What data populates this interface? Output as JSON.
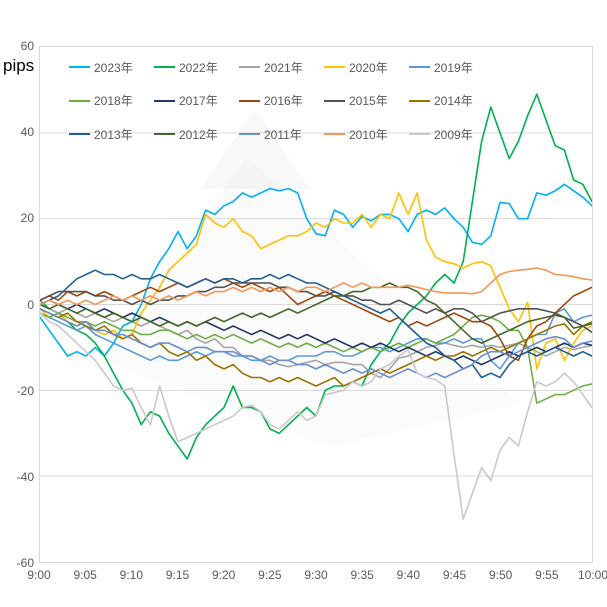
{
  "chart_data": {
    "type": "line",
    "title": "",
    "ylabel": "pips",
    "xlabel": "",
    "ylim": [
      -60,
      60
    ],
    "y_ticks": [
      60,
      40,
      20,
      0,
      -20,
      -40,
      -60
    ],
    "x_tick_labels": [
      "9:00",
      "9:05",
      "9:10",
      "9:15",
      "9:20",
      "9:25",
      "9:30",
      "9:35",
      "9:40",
      "9:45",
      "9:50",
      "9:55",
      "10:00"
    ],
    "x_start": "9:00",
    "x_end": "10:00",
    "x_interval_minutes": 1,
    "points_per_series": 61,
    "grid": true,
    "gridline_color": "#D9D9D9",
    "axis_text_color": "#595959",
    "legend_position": "top-left-inside",
    "legend_rows": 3,
    "legend_cols": 5,
    "series": [
      {
        "name": "2023年",
        "color": "#00B0F0",
        "values": [
          -3,
          -6,
          -9,
          -12,
          -11,
          -12,
          -10,
          -12,
          -9,
          -5,
          -4,
          0,
          6,
          10,
          13,
          17,
          13,
          16,
          22,
          21,
          23,
          24,
          26,
          25,
          26,
          27,
          26.5,
          27,
          26,
          20,
          16.5,
          16,
          22,
          21,
          18,
          20.5,
          19.5,
          21,
          21,
          20,
          17,
          21,
          22,
          21,
          22.5,
          20,
          18,
          14.5,
          14,
          16,
          23.8,
          23.5,
          20,
          20,
          26,
          25.5,
          26.5,
          28,
          26.5,
          25,
          23
        ]
      },
      {
        "name": "2022年",
        "color": "#00B050",
        "values": [
          1,
          -1,
          -2,
          -4,
          -6,
          -7,
          -9,
          -12,
          -16,
          -20,
          -23,
          -28,
          -25,
          -26,
          -30,
          -33,
          -36,
          -31,
          -28,
          -26,
          -24,
          -19,
          -24,
          -24,
          -25,
          -29,
          -30,
          -28,
          -26,
          -24,
          -26,
          -20,
          -19,
          -19,
          -18,
          -19,
          -14,
          -11,
          -9,
          -5,
          -2,
          0,
          2,
          5,
          7,
          5,
          10,
          24,
          38,
          46,
          40,
          34,
          38,
          44,
          49,
          43,
          37,
          36,
          29,
          28,
          24
        ]
      },
      {
        "name": "2021年",
        "color": "#A5A5A5",
        "values": [
          0,
          -1,
          -2,
          -1,
          -2,
          -3,
          -2,
          -3,
          -4,
          -3,
          -4,
          -5,
          -4,
          -5,
          -6,
          -7,
          -6,
          -8,
          -9,
          -8,
          -10,
          -10,
          -12,
          -12,
          -13,
          -13,
          -14,
          -14.5,
          -14,
          -13.5,
          -13,
          -14,
          -13.5,
          -13.5,
          -14,
          -14,
          -16,
          -17,
          -15,
          -12.5,
          -12,
          -11,
          -10,
          -9.5,
          -9,
          -9.5,
          -10,
          -9.5,
          -10,
          -9.5,
          -10,
          -9.5,
          -9,
          -10,
          -11,
          -12,
          -11,
          -10,
          -10.5,
          -10,
          -9.5
        ]
      },
      {
        "name": "2020年",
        "color": "#FFC000",
        "values": [
          -1,
          -3,
          -2,
          -4,
          -5,
          -4,
          -6,
          -7,
          -6,
          -8,
          -7,
          -2,
          1,
          4,
          8,
          10,
          12,
          14,
          21,
          19,
          18,
          20,
          17,
          16,
          13,
          14,
          15,
          16,
          16,
          17,
          19,
          18,
          20,
          19,
          19,
          21,
          18,
          21,
          20,
          26,
          21,
          26,
          15,
          11,
          10,
          9.5,
          8.5,
          9.5,
          10,
          9,
          4,
          -1,
          -4,
          0.5,
          -15,
          -9,
          -8,
          -13,
          -9,
          -6,
          -5
        ]
      },
      {
        "name": "2019年",
        "color": "#5B9BD5",
        "values": [
          -2,
          -3,
          -4,
          -5,
          -6,
          -5,
          -7,
          -8,
          -9,
          -10,
          -11,
          -12,
          -13,
          -12,
          -13,
          -13,
          -12,
          -11,
          -12,
          -11,
          -11,
          -12,
          -12,
          -13,
          -13,
          -12,
          -13,
          -13,
          -12,
          -12,
          -12,
          -11,
          -11,
          -12,
          -12,
          -11,
          -10,
          -10,
          -11,
          -10,
          -9,
          -8,
          -8,
          -9,
          -9,
          -8,
          -9,
          -8,
          -8,
          -13,
          -15,
          -12,
          -9,
          -8,
          -7,
          -7,
          -2,
          -1,
          -4,
          -3,
          -2.5
        ]
      },
      {
        "name": "2018年",
        "color": "#70AD47",
        "values": [
          -2,
          -3,
          -2,
          -3,
          -4,
          -4,
          -5,
          -4,
          -5,
          -6,
          -6,
          -7,
          -7,
          -6,
          -6,
          -7,
          -8,
          -7,
          -8,
          -7,
          -8,
          -7,
          -8,
          -9,
          -8,
          -9,
          -10,
          -9,
          -10,
          -9,
          -10,
          -9,
          -10,
          -11,
          -10,
          -11,
          -10,
          -11,
          -10,
          -9,
          -10,
          -9,
          -8,
          -9,
          -8,
          -7,
          -5,
          -3,
          -2.5,
          -3,
          -4,
          -6,
          -6,
          -10,
          -23,
          -22,
          -21,
          -21,
          -20,
          -19,
          -18.5
        ]
      },
      {
        "name": "2017年",
        "color": "#203864",
        "values": [
          0,
          1,
          0,
          -1,
          0,
          -1,
          -2,
          -1,
          -2,
          -3,
          -2,
          -3,
          -4,
          -3,
          -4,
          -5,
          -4,
          -5,
          -4,
          -5,
          -6,
          -5,
          -6,
          -7,
          -6,
          -7,
          -8,
          -7,
          -8,
          -7,
          -8,
          -9,
          -8,
          -9,
          -10,
          -9,
          -10,
          -9,
          -10,
          -11,
          -10,
          -11,
          -12,
          -11,
          -12,
          -13,
          -12,
          -13,
          -14,
          -13,
          -12,
          -11,
          -12,
          -11,
          -10,
          -11,
          -10,
          -9,
          -10,
          -9,
          -9.5
        ]
      },
      {
        "name": "2016年",
        "color": "#9E480E",
        "values": [
          1,
          2,
          1,
          3,
          2,
          3,
          2,
          3,
          2,
          1,
          2,
          3,
          4,
          3,
          4,
          5,
          4,
          5,
          6,
          5,
          6,
          5,
          4,
          5,
          4,
          3,
          4,
          2,
          0,
          1,
          2,
          3,
          2,
          1,
          0,
          -1,
          -2,
          -3,
          -4,
          -3,
          -5,
          -4,
          -5,
          -4,
          -3,
          -2,
          -3,
          -4,
          -4,
          -5,
          -8,
          -12,
          -13,
          -8,
          -5,
          -4,
          -2,
          0,
          2,
          3,
          4
        ]
      },
      {
        "name": "2015年",
        "color": "#525252",
        "values": [
          1,
          2,
          3,
          3,
          3,
          3,
          2,
          2,
          1,
          1,
          0,
          1,
          0,
          1,
          1,
          2,
          2,
          3,
          3,
          4,
          4,
          5,
          5,
          5,
          5,
          5,
          4,
          4,
          3,
          3,
          2,
          2,
          3,
          2,
          2,
          1,
          1,
          0,
          0,
          1,
          0,
          -1,
          -2,
          -1,
          -2,
          -1,
          -1,
          -2,
          -4,
          -3,
          -2,
          -1.5,
          -1,
          -1,
          -1,
          -1.5,
          -2,
          -3,
          -4,
          -5,
          -6.5
        ]
      },
      {
        "name": "2014年",
        "color": "#997300",
        "values": [
          -1,
          -2,
          -3,
          -2,
          -4,
          -5,
          -6,
          -5,
          -7,
          -8,
          -7,
          -9,
          -10,
          -9,
          -11,
          -12,
          -11,
          -13,
          -12,
          -14,
          -15,
          -14,
          -16,
          -17,
          -17,
          -18,
          -17,
          -18,
          -17,
          -18,
          -19,
          -18,
          -17,
          -19,
          -18,
          -17,
          -16,
          -15,
          -16,
          -15,
          -14,
          -13,
          -12,
          -13,
          -12,
          -12,
          -11,
          -12,
          -11,
          -10,
          -11,
          -10,
          -9,
          -8,
          -7,
          -6,
          -5,
          -4.5,
          -7,
          -5,
          -4
        ]
      },
      {
        "name": "2013年",
        "color": "#255E91",
        "values": [
          0,
          1,
          2,
          4,
          6,
          7,
          8,
          7,
          7,
          6,
          7,
          6,
          6,
          7,
          6,
          5,
          4,
          5,
          6,
          5,
          6,
          6,
          5,
          6,
          6,
          7,
          6,
          7,
          6,
          5,
          5,
          4,
          3,
          2,
          1,
          0,
          -1,
          -2,
          -1,
          -3,
          -5,
          -7,
          -9,
          -10,
          -12,
          -13,
          -15,
          -14,
          -17,
          -16,
          -17,
          -14,
          -12,
          -11,
          -12,
          -11,
          -10,
          -11,
          -12,
          -11,
          -12
        ]
      },
      {
        "name": "2012年",
        "color": "#43682B",
        "values": [
          0,
          -1,
          0,
          -1,
          -2,
          -1,
          -2,
          -3,
          -2,
          -3,
          -4,
          -3,
          -4,
          -5,
          -4,
          -5,
          -4,
          -5,
          -4,
          -3,
          -4,
          -3,
          -2,
          -3,
          -2,
          -3,
          -2,
          -1,
          -2,
          -1,
          0,
          1,
          2,
          2,
          3,
          3,
          4,
          4,
          5,
          4,
          4,
          3,
          1,
          0,
          -2,
          -4,
          -6,
          -8,
          -9,
          -8,
          -7,
          -6,
          -5,
          -4,
          -3.5,
          -3,
          -2.5,
          -3,
          -5.5,
          -5,
          -4.5
        ]
      },
      {
        "name": "2011年",
        "color": "#698ED0",
        "values": [
          -1,
          -2,
          -3,
          -4,
          -5,
          -4,
          -6,
          -6,
          -7,
          -7,
          -8,
          -9,
          -10,
          -9,
          -9,
          -10,
          -11,
          -10,
          -10,
          -11,
          -11,
          -11,
          -12,
          -12,
          -13,
          -14,
          -13,
          -13,
          -14,
          -14,
          -15,
          -14,
          -15,
          -16,
          -15,
          -16,
          -15,
          -16,
          -17,
          -16,
          -15,
          -16,
          -17,
          -16,
          -17,
          -16,
          -15,
          -14,
          -12,
          -11,
          -11,
          -12,
          -11,
          -10,
          -9,
          -8,
          -7.5,
          -8,
          -10,
          -9,
          -8.5
        ]
      },
      {
        "name": "2010年",
        "color": "#F1975A",
        "values": [
          0,
          1,
          0,
          1,
          0,
          1,
          0,
          1,
          2,
          1,
          2,
          1,
          2,
          1,
          2,
          1,
          2,
          3,
          2,
          3,
          3,
          4,
          3,
          4,
          3,
          4,
          3,
          4,
          3,
          4,
          4,
          3,
          4,
          5,
          4,
          5,
          4,
          4,
          4,
          4,
          4.5,
          4,
          3.5,
          3,
          2.7,
          2.7,
          2.7,
          2.5,
          3,
          5,
          7,
          7.7,
          8,
          8.2,
          8.5,
          8,
          7,
          6.8,
          6.5,
          6,
          5.7
        ]
      },
      {
        "name": "2009年",
        "color": "#C9C9C9",
        "values": [
          -2,
          -4,
          -5,
          -7,
          -9,
          -11,
          -13,
          -16,
          -19,
          -20,
          -19.5,
          -24,
          -28,
          -19,
          -26,
          -32,
          -31,
          -30,
          -29,
          -28,
          -27,
          -26,
          -24,
          -23.5,
          -25,
          -28,
          -29,
          -27,
          -25,
          -27,
          -26,
          -21,
          -20.5,
          -20,
          -18,
          -19,
          -18,
          -15,
          -14,
          -12,
          -10.5,
          -16,
          -17,
          -17.5,
          -19,
          -35,
          -50,
          -44,
          -38,
          -41,
          -34,
          -31,
          -33,
          -25,
          -18,
          -19,
          -18,
          -16,
          -18,
          -21,
          -24
        ]
      }
    ]
  }
}
